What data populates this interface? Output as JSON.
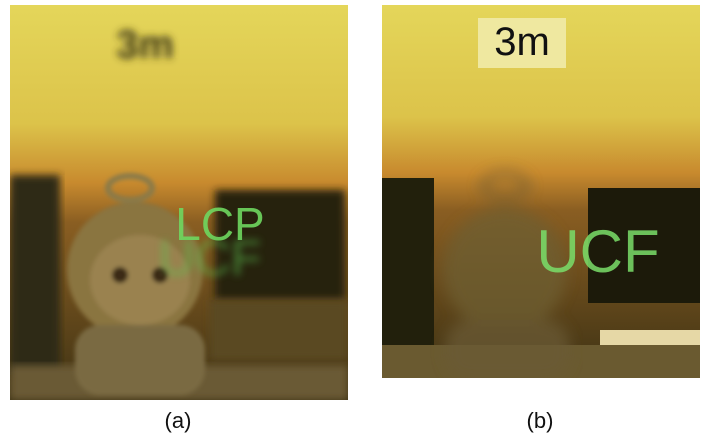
{
  "panels": [
    {
      "label": "(a)",
      "sign": "3m",
      "overlay_texts": [
        "LCP",
        "UCF"
      ]
    },
    {
      "label": "(b)",
      "sign": "3m",
      "overlay_texts": [
        "UCF"
      ]
    }
  ]
}
